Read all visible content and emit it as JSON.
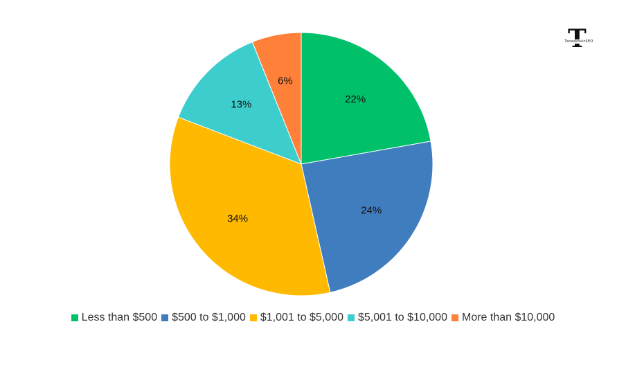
{
  "brand": {
    "logo_letter": "T",
    "logo_text": "TanaskovicSEO"
  },
  "chart_data": {
    "type": "pie",
    "categories": [
      "Less than $500",
      "$500 to $1,000",
      "$1,001 to $5,000",
      "$5,001 to $10,000",
      "More than $10,000"
    ],
    "values": [
      22,
      24,
      34,
      13,
      6
    ],
    "labels": [
      "22%",
      "24%",
      "34%",
      "13%",
      "6%"
    ],
    "colors": [
      "#00C16A",
      "#3F7DBE",
      "#FFB900",
      "#3ECDCD",
      "#FF8039"
    ],
    "legend": "bottom"
  }
}
